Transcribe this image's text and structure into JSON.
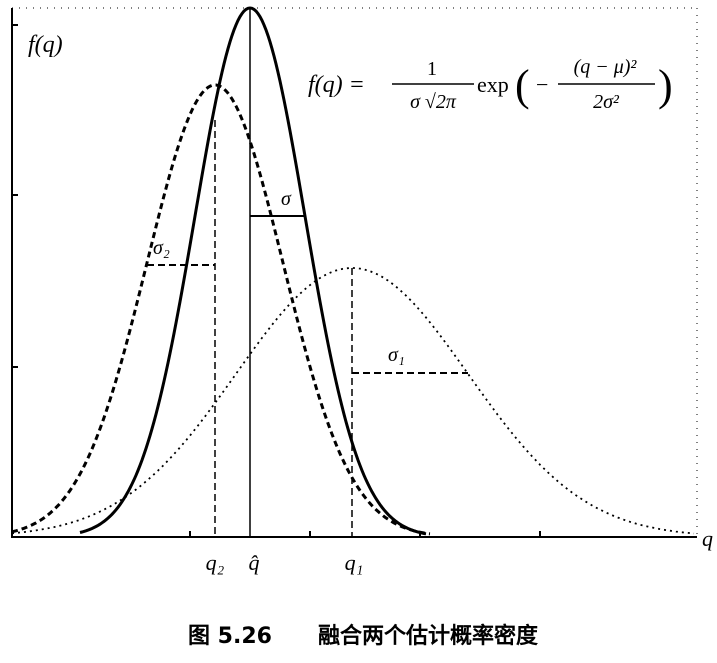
{
  "axis": {
    "y_label": "f(q)",
    "x_label": "q"
  },
  "formula": {
    "lhs": "f(q) =",
    "num1": "1",
    "den1": "σ √2π",
    "func": "exp",
    "open": "(",
    "sign": "−",
    "num2": "(q − μ)²",
    "den2": "2σ²",
    "close": ")"
  },
  "labels": {
    "sigma": "σ",
    "sigma2": "σ₂",
    "sigma1": "σ₁",
    "q2": "q₂",
    "qhat": "q̂",
    "q1": "q₁"
  },
  "caption": {
    "number": "图 5.26",
    "text": "融合两个估计概率密度"
  }
}
